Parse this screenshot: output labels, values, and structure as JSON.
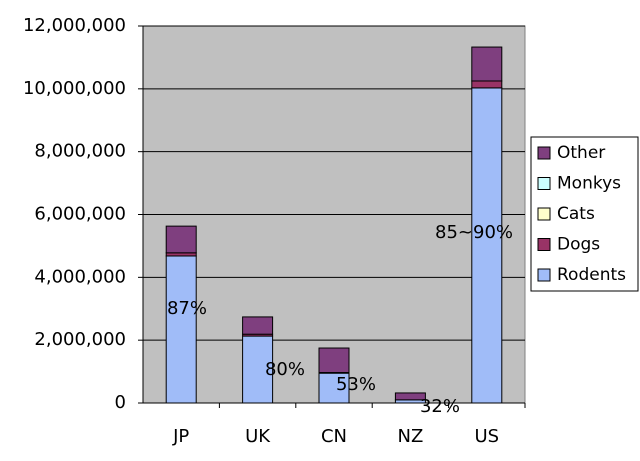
{
  "chart_data": {
    "type": "stacked_bar",
    "categories": [
      "JP",
      "UK",
      "CN",
      "NZ",
      "US"
    ],
    "series": [
      {
        "name": "Rodents",
        "color": "#a0bcf8",
        "values": [
          4680000,
          2130000,
          950000,
          100000,
          10030000
        ]
      },
      {
        "name": "Dogs",
        "color": "#993366",
        "values": [
          100000,
          60000,
          20000,
          0,
          220000
        ]
      },
      {
        "name": "Cats",
        "color": "#ffffcc",
        "values": [
          0,
          0,
          0,
          0,
          0
        ]
      },
      {
        "name": "Monkys",
        "color": "#ccffff",
        "values": [
          0,
          0,
          0,
          0,
          0
        ]
      },
      {
        "name": "Other",
        "color": "#7f3f7f",
        "values": [
          850000,
          550000,
          780000,
          220000,
          1080000
        ]
      }
    ],
    "ylim": [
      0,
      12000000
    ],
    "yticks": [
      0,
      {
        "value": 2000000,
        "label": "2,000,000"
      },
      {
        "value": 4000000,
        "label": "4,000,000"
      },
      {
        "value": 6000000,
        "label": "6,000,000"
      },
      {
        "value": 8000000,
        "label": "8,000,000"
      },
      {
        "value": 10000000,
        "label": "10,000,000"
      },
      {
        "value": 12000000,
        "label": "12,000,000"
      }
    ],
    "grid": true,
    "legend": "right",
    "annotations": [
      "87%",
      "80%",
      "53%",
      "32%",
      "85~90%"
    ]
  }
}
